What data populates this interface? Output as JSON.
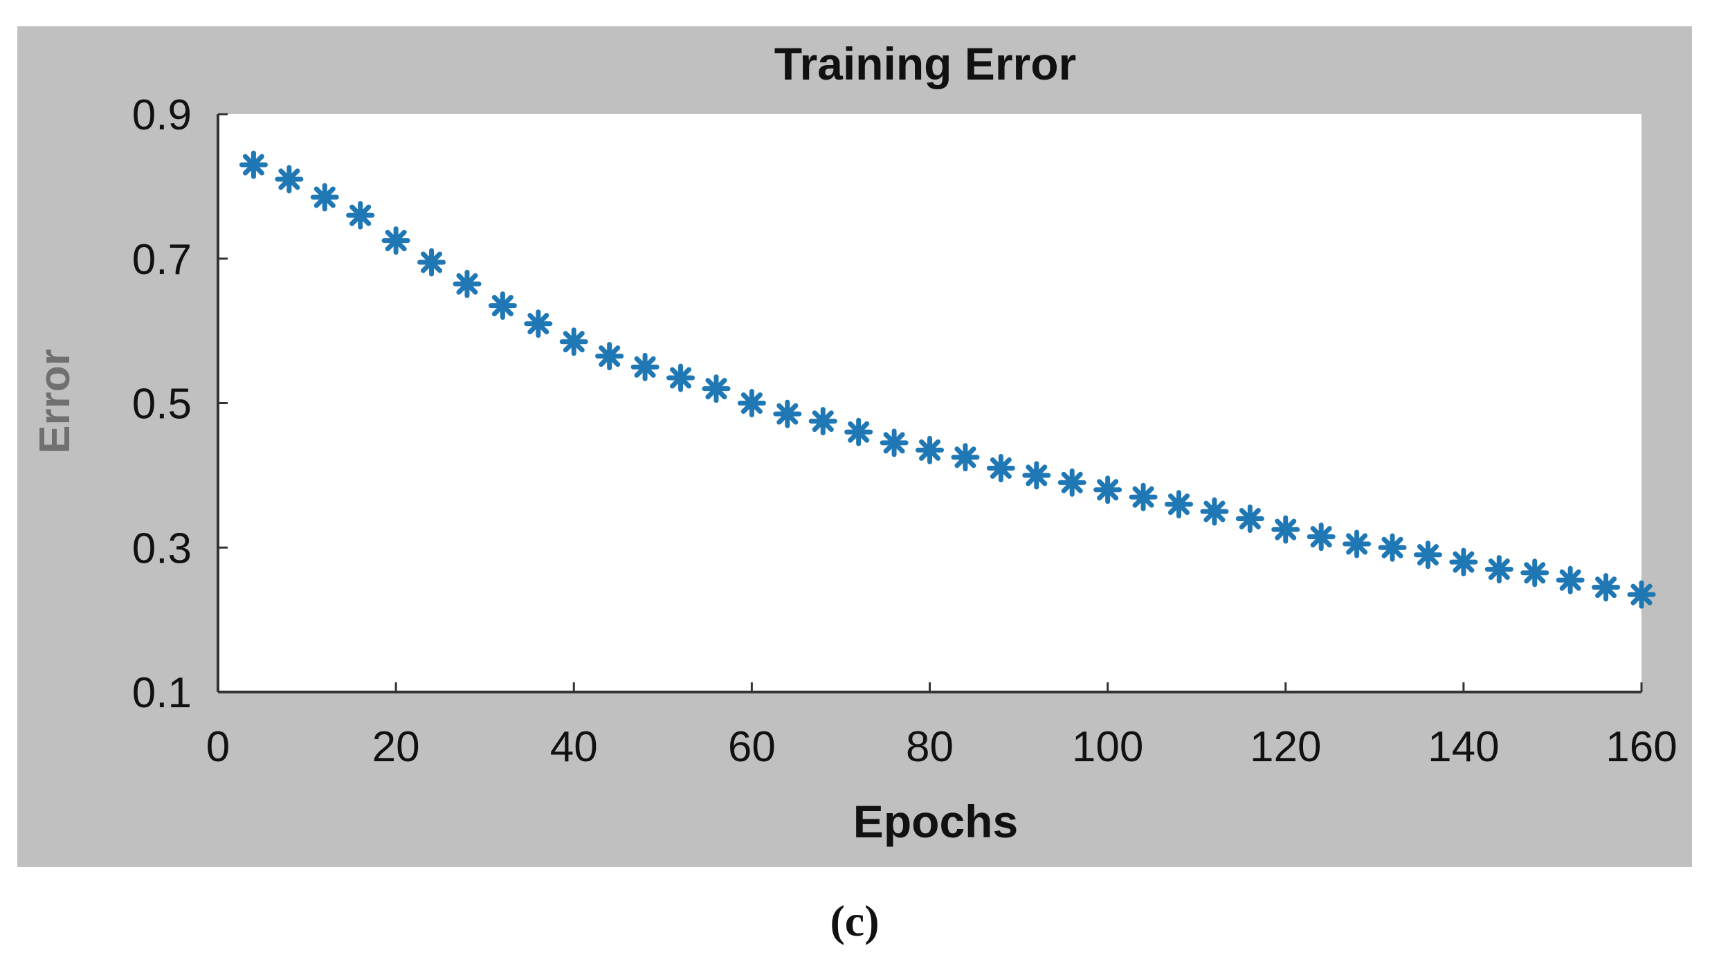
{
  "caption": "(c)",
  "chart_data": {
    "type": "scatter",
    "title": "Training Error",
    "xlabel": "Epochs",
    "ylabel": "Error",
    "xlim": [
      0,
      160
    ],
    "ylim": [
      0.1,
      0.9
    ],
    "xticks": [
      0,
      20,
      40,
      60,
      80,
      100,
      120,
      140,
      160
    ],
    "yticks": [
      0.1,
      0.3,
      0.5,
      0.7,
      0.9
    ],
    "xtick_labels": [
      "0",
      "20",
      "40",
      "60",
      "80",
      "100",
      "120",
      "140",
      "160"
    ],
    "ytick_labels": [
      "0.1",
      "0.3",
      "0.5",
      "0.7",
      "0.9"
    ],
    "grid": false,
    "marker": "asterisk",
    "marker_color": "#1f77b4",
    "figure_background": "#c0c0c0",
    "axes_background": "#ffffff",
    "series": [
      {
        "x": [
          4,
          8,
          12,
          16,
          20,
          24,
          28,
          32,
          36,
          40,
          44,
          48,
          52,
          56,
          60,
          64,
          68,
          72,
          76,
          80,
          84,
          88,
          92,
          96,
          100,
          104,
          108,
          112,
          116,
          120,
          124,
          128,
          132,
          136,
          140,
          144,
          148,
          152,
          156,
          160
        ],
        "y": [
          0.83,
          0.81,
          0.785,
          0.76,
          0.725,
          0.695,
          0.665,
          0.635,
          0.61,
          0.585,
          0.565,
          0.55,
          0.535,
          0.52,
          0.5,
          0.485,
          0.475,
          0.46,
          0.445,
          0.435,
          0.425,
          0.41,
          0.4,
          0.39,
          0.38,
          0.37,
          0.36,
          0.35,
          0.34,
          0.325,
          0.315,
          0.305,
          0.3,
          0.29,
          0.28,
          0.27,
          0.265,
          0.255,
          0.245,
          0.235
        ]
      }
    ]
  }
}
